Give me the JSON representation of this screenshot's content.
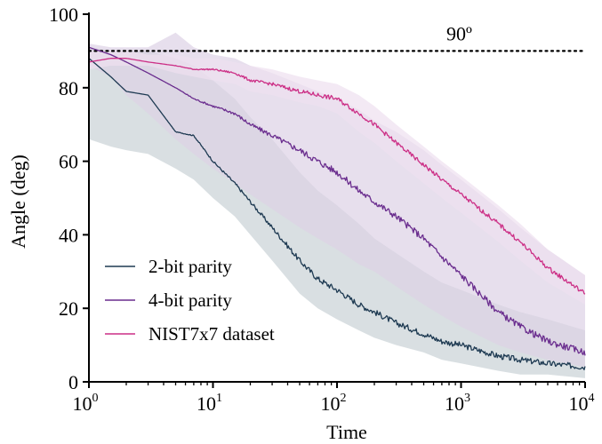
{
  "chart_data": {
    "type": "line",
    "xlabel": "Time",
    "ylabel": "Angle (deg)",
    "x_scale": "log",
    "xlim": [
      1,
      10000
    ],
    "ylim": [
      0,
      100
    ],
    "x_ticks": [
      {
        "base": "10",
        "exp": "0",
        "value": 1
      },
      {
        "base": "10",
        "exp": "1",
        "value": 10
      },
      {
        "base": "10",
        "exp": "2",
        "value": 100
      },
      {
        "base": "10",
        "exp": "3",
        "value": 1000
      },
      {
        "base": "10",
        "exp": "4",
        "value": 10000
      }
    ],
    "y_ticks": [
      "0",
      "20",
      "40",
      "60",
      "80",
      "100"
    ],
    "reference_line": {
      "y": 90,
      "label": "90º",
      "style": "dotted"
    },
    "legend_position": "bottom-left",
    "series": [
      {
        "name": "2-bit parity",
        "color": "#1e3a52",
        "band_color": "#c9d2d6",
        "x": [
          1,
          1.5,
          2,
          3,
          5,
          7,
          10,
          15,
          20,
          30,
          50,
          70,
          100,
          150,
          200,
          300,
          500,
          700,
          1000,
          2000,
          3000,
          5000,
          10000
        ],
        "y": [
          88,
          83,
          79,
          78,
          68,
          67,
          60,
          54,
          49,
          42,
          33,
          28,
          25,
          21,
          19,
          16,
          13,
          11,
          10,
          7,
          6,
          5,
          4
        ],
        "upper": [
          91,
          90,
          90,
          90,
          88,
          86,
          82,
          77,
          72,
          66,
          57,
          52,
          48,
          43,
          39,
          35,
          30,
          27,
          25,
          21,
          19,
          17,
          14
        ],
        "lower": [
          66,
          64,
          63,
          62,
          58,
          55,
          50,
          45,
          40,
          33,
          24,
          20,
          17,
          14,
          12,
          10,
          8,
          6,
          5,
          3,
          2,
          2,
          1
        ]
      },
      {
        "name": "4-bit parity",
        "color": "#6a2d8e",
        "band_color": "#ddd2e6",
        "x": [
          1,
          1.5,
          2,
          3,
          5,
          7,
          10,
          15,
          20,
          30,
          50,
          70,
          100,
          150,
          200,
          300,
          500,
          700,
          1000,
          2000,
          3000,
          5000,
          10000
        ],
        "y": [
          91,
          89,
          87,
          84,
          80,
          77,
          75,
          73,
          70,
          67,
          63,
          60,
          57,
          52,
          49,
          45,
          39,
          34,
          29,
          19,
          15,
          11,
          8
        ],
        "upper": [
          92,
          91,
          91,
          91,
          95,
          91,
          89,
          88,
          86,
          84,
          81,
          79,
          77,
          74,
          71,
          68,
          63,
          59,
          55,
          47,
          42,
          36,
          29
        ],
        "lower": [
          86,
          83,
          78,
          73,
          66,
          62,
          58,
          54,
          51,
          47,
          42,
          39,
          36,
          32,
          30,
          26,
          21,
          18,
          15,
          10,
          8,
          6,
          4
        ]
      },
      {
        "name": "NIST7x7 dataset",
        "color": "#cc2f86",
        "band_color": "#eee0f0",
        "x": [
          1,
          1.5,
          2,
          3,
          5,
          7,
          10,
          15,
          20,
          30,
          50,
          70,
          100,
          150,
          200,
          300,
          500,
          700,
          1000,
          2000,
          3000,
          5000,
          10000
        ],
        "y": [
          87,
          88,
          88,
          87,
          86,
          85,
          85,
          84,
          82,
          81,
          79,
          78,
          77,
          73,
          70,
          65,
          59,
          55,
          51,
          43,
          38,
          31,
          24
        ],
        "upper": [
          90,
          90,
          90,
          89,
          89,
          88,
          88,
          87,
          86,
          85,
          83,
          82,
          81,
          78,
          75,
          70,
          64,
          60,
          56,
          48,
          43,
          36,
          29
        ],
        "lower": [
          85,
          86,
          86,
          86,
          84,
          83,
          82,
          81,
          79,
          78,
          76,
          75,
          73,
          68,
          65,
          60,
          54,
          50,
          46,
          38,
          33,
          27,
          21
        ]
      }
    ]
  }
}
